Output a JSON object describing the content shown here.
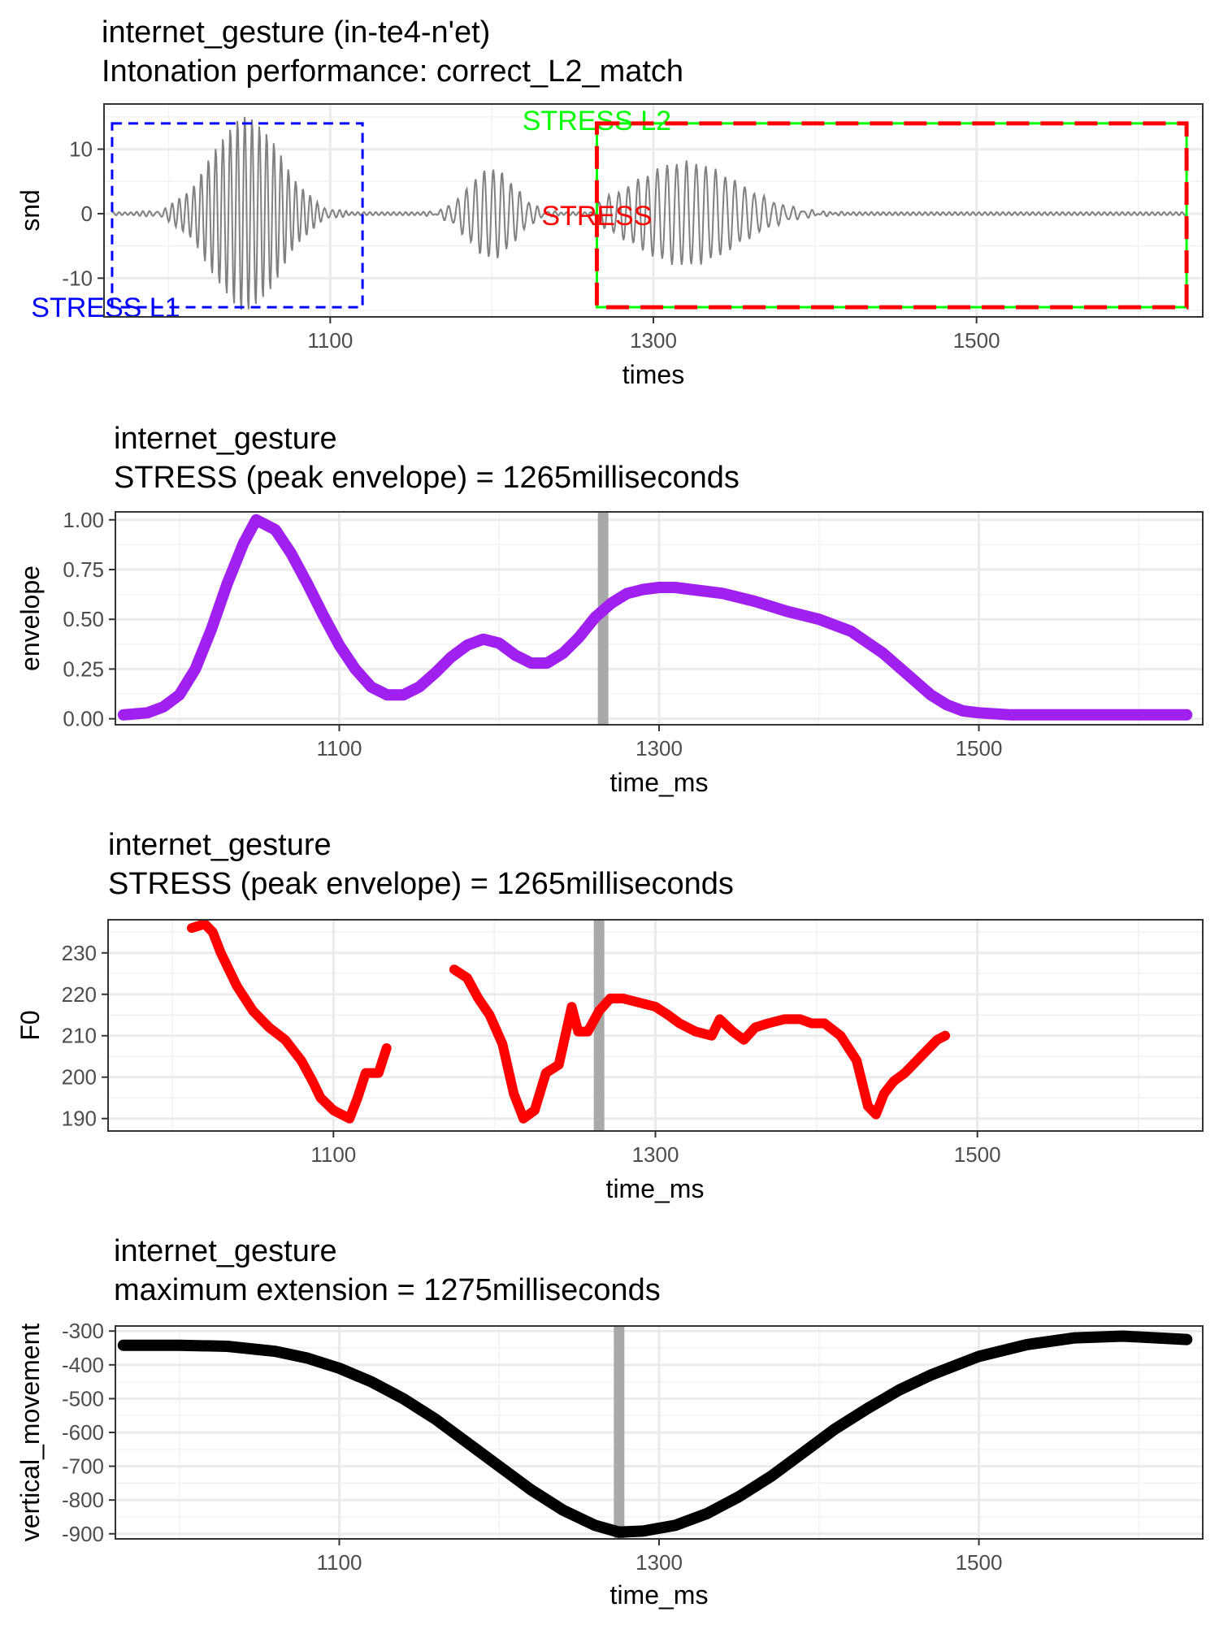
{
  "chart_data": [
    {
      "type": "line",
      "title": "internet_gesture  (in-te4-n'et)",
      "subtitle": "Intonation performance: correct_L2_match",
      "xlabel": "times",
      "ylabel": "snd",
      "xlim": [
        960,
        1640
      ],
      "ylim": [
        -16,
        17
      ],
      "x_ticks": [
        1100,
        1300,
        1500
      ],
      "y_ticks": [
        -10,
        0,
        10
      ],
      "y_tick_labels": [
        "-10",
        "0",
        "10"
      ],
      "grid": true,
      "series": [
        {
          "color": "#808080",
          "kind": "waveform",
          "segments": [
            {
              "from": 965,
              "to": 1110,
              "center": 1048,
              "width": 30,
              "amp": 15,
              "period": 4.5
            },
            {
              "from": 1150,
              "to": 1265,
              "center": 1200,
              "width": 20,
              "amp": 7,
              "period": 5.5
            },
            {
              "from": 1265,
              "to": 1460,
              "center": 1320,
              "width": 45,
              "amp": 8,
              "period": 6
            }
          ]
        }
      ],
      "annotations": [
        {
          "label": "STRESS L1",
          "color": "#0000ff",
          "style": "dashed",
          "x0": 965,
          "x1": 1120,
          "y0": -14.5,
          "y1": 14
        },
        {
          "label": "STRESS L2",
          "color": "#00ff00",
          "style": "solid",
          "x0": 1265,
          "x1": 1630,
          "y0": -14.5,
          "y1": 14
        },
        {
          "label": "STRESS",
          "color": "#ff0000",
          "style": "dashed",
          "x0": 1265,
          "x1": 1630,
          "y0": -14.5,
          "y1": 14
        }
      ]
    },
    {
      "type": "line",
      "title": "internet_gesture",
      "subtitle": "STRESS (peak envelope) = 1265milliseconds",
      "xlabel": "time_ms",
      "ylabel": "envelope",
      "xlim": [
        960,
        1640
      ],
      "ylim": [
        -0.03,
        1.04
      ],
      "x_ticks": [
        1100,
        1300,
        1500
      ],
      "y_ticks": [
        0,
        0.25,
        0.5,
        0.75,
        1.0
      ],
      "y_tick_labels": [
        "0.00",
        "0.25",
        "0.50",
        "0.75",
        "1.00"
      ],
      "grid": true,
      "marker_x": 1265,
      "series": [
        {
          "color": "#a020f0",
          "x": [
            965,
            980,
            990,
            1000,
            1010,
            1020,
            1030,
            1040,
            1048,
            1060,
            1070,
            1080,
            1090,
            1100,
            1110,
            1120,
            1130,
            1140,
            1150,
            1160,
            1170,
            1180,
            1190,
            1200,
            1210,
            1220,
            1230,
            1240,
            1250,
            1260,
            1270,
            1280,
            1290,
            1300,
            1310,
            1320,
            1340,
            1360,
            1380,
            1400,
            1420,
            1440,
            1460,
            1470,
            1480,
            1490,
            1500,
            1520,
            1550,
            1580,
            1610,
            1630
          ],
          "y": [
            0.02,
            0.03,
            0.06,
            0.12,
            0.25,
            0.45,
            0.68,
            0.88,
            1.0,
            0.95,
            0.83,
            0.68,
            0.52,
            0.37,
            0.25,
            0.16,
            0.12,
            0.12,
            0.16,
            0.23,
            0.31,
            0.37,
            0.4,
            0.38,
            0.32,
            0.28,
            0.28,
            0.33,
            0.41,
            0.51,
            0.58,
            0.63,
            0.65,
            0.66,
            0.66,
            0.65,
            0.63,
            0.59,
            0.54,
            0.5,
            0.44,
            0.33,
            0.19,
            0.12,
            0.07,
            0.04,
            0.03,
            0.02,
            0.02,
            0.02,
            0.02,
            0.02
          ]
        }
      ]
    },
    {
      "type": "line",
      "title": "internet_gesture",
      "subtitle": "STRESS (peak envelope) = 1265milliseconds",
      "xlabel": "time_ms",
      "ylabel": "F0",
      "xlim": [
        960,
        1640
      ],
      "ylim": [
        187,
        238
      ],
      "x_ticks": [
        1100,
        1300,
        1500
      ],
      "y_ticks": [
        190,
        200,
        210,
        220,
        230
      ],
      "y_tick_labels": [
        "190",
        "200",
        "210",
        "220",
        "230"
      ],
      "grid": true,
      "marker_x": 1265,
      "series": [
        {
          "color": "#ff0000",
          "segments": [
            {
              "x": [
                1012,
                1020,
                1025,
                1030,
                1040,
                1050,
                1060,
                1070,
                1080,
                1087,
                1092,
                1100,
                1110,
                1115,
                1120,
                1128,
                1133
              ],
              "y": [
                236,
                237,
                235,
                230,
                222,
                216,
                212,
                209,
                204,
                199,
                195,
                192,
                190,
                195,
                201,
                201,
                207
              ]
            },
            {
              "x": [
                1175,
                1183,
                1190,
                1197,
                1205,
                1212,
                1218,
                1225,
                1232,
                1240,
                1248,
                1252,
                1258,
                1265,
                1272,
                1280,
                1290,
                1300,
                1308,
                1315,
                1325,
                1335,
                1340,
                1348,
                1355,
                1362,
                1370,
                1380,
                1390,
                1397,
                1405,
                1415,
                1425,
                1432,
                1437,
                1442,
                1448,
                1455,
                1465,
                1475,
                1480
              ],
              "y": [
                226,
                224,
                219,
                215,
                208,
                196,
                190,
                192,
                201,
                203,
                217,
                211,
                211,
                216,
                219,
                219,
                218,
                217,
                215,
                213,
                211,
                210,
                214,
                211,
                209,
                212,
                213,
                214,
                214,
                213,
                213,
                210,
                204,
                193,
                191,
                196,
                199,
                201,
                205,
                209,
                210
              ]
            }
          ]
        }
      ]
    },
    {
      "type": "line",
      "title": "internet_gesture",
      "subtitle": "maximum extension = 1275milliseconds",
      "xlabel": "time_ms",
      "ylabel": "vertical_movement",
      "xlim": [
        960,
        1640
      ],
      "ylim": [
        -915,
        -285
      ],
      "x_ticks": [
        1100,
        1300,
        1500
      ],
      "y_ticks": [
        -900,
        -800,
        -700,
        -600,
        -500,
        -400,
        -300
      ],
      "y_tick_labels": [
        "-900",
        "-800",
        "-700",
        "-600",
        "-500",
        "-400",
        "-300"
      ],
      "grid": true,
      "marker_x": 1275,
      "series": [
        {
          "color": "#000000",
          "x": [
            965,
            1000,
            1030,
            1060,
            1080,
            1100,
            1120,
            1140,
            1160,
            1180,
            1200,
            1220,
            1240,
            1260,
            1275,
            1290,
            1310,
            1330,
            1350,
            1370,
            1390,
            1410,
            1430,
            1450,
            1470,
            1500,
            1530,
            1560,
            1590,
            1630
          ],
          "y": [
            -342,
            -342,
            -345,
            -360,
            -380,
            -410,
            -450,
            -500,
            -560,
            -630,
            -700,
            -770,
            -830,
            -875,
            -895,
            -892,
            -875,
            -840,
            -790,
            -730,
            -660,
            -590,
            -530,
            -475,
            -430,
            -375,
            -340,
            -320,
            -315,
            -325
          ]
        }
      ]
    }
  ]
}
